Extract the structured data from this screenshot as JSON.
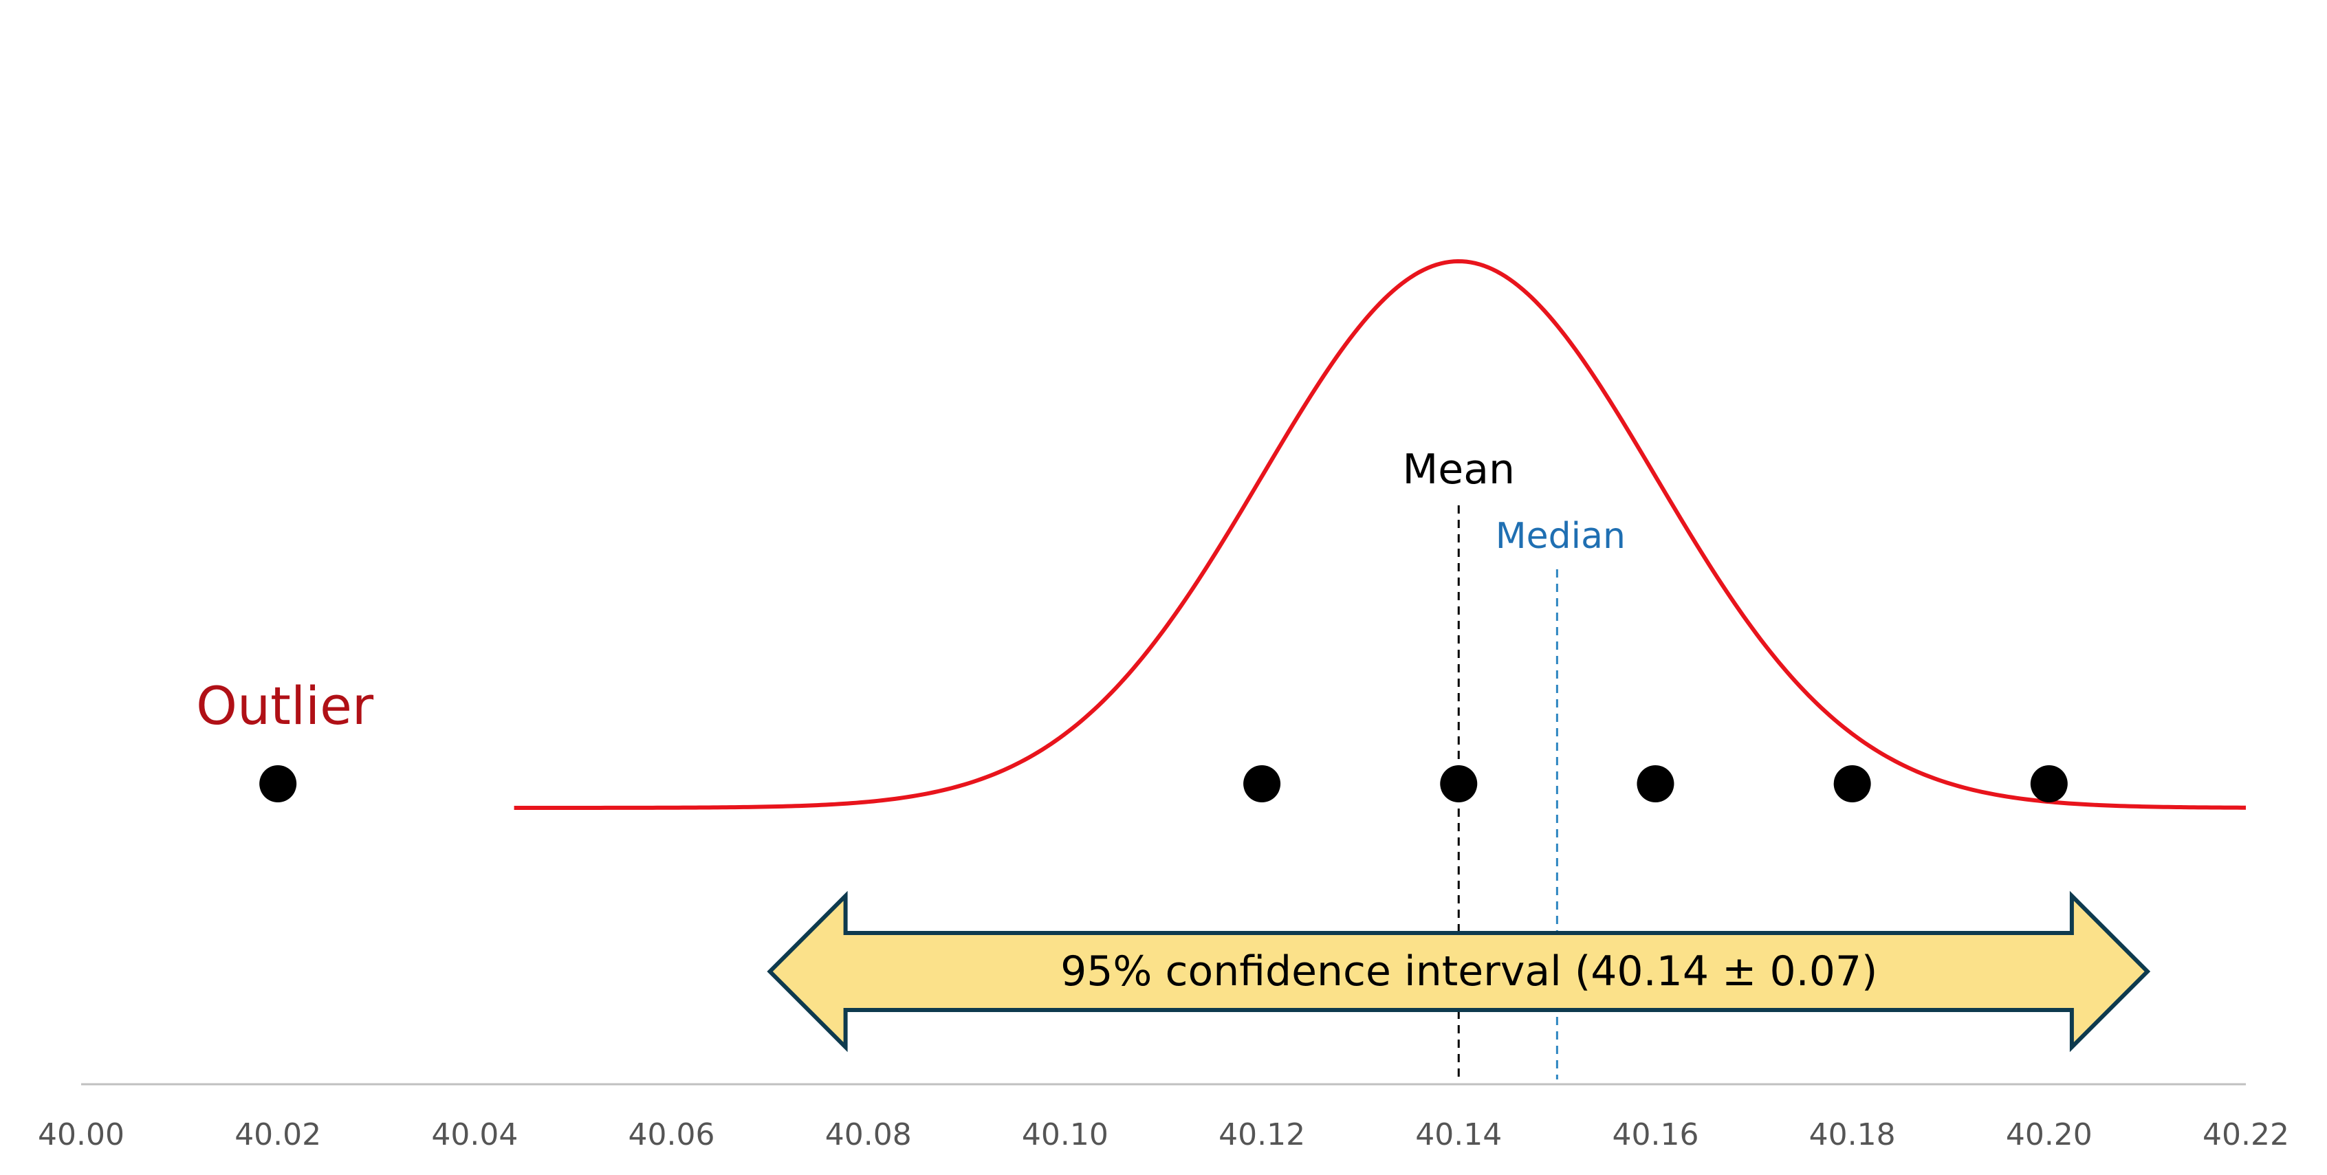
{
  "chart_data": {
    "type": "scatter",
    "title": "",
    "xlabel": "",
    "ylabel": "",
    "xlim": [
      40.0,
      40.22
    ],
    "x_ticks": [
      "40.00",
      "40.02",
      "40.04",
      "40.06",
      "40.08",
      "40.10",
      "40.12",
      "40.14",
      "40.16",
      "40.18",
      "40.20",
      "40.22"
    ],
    "x_tick_values": [
      40.0,
      40.02,
      40.04,
      40.06,
      40.08,
      40.1,
      40.12,
      40.14,
      40.16,
      40.18,
      40.2,
      40.22
    ],
    "points": [
      40.02,
      40.12,
      40.14,
      40.16,
      40.18,
      40.2
    ],
    "normal_curve": {
      "mean": 40.14,
      "sd": 0.02,
      "x_start": 40.044,
      "x_end": 40.22
    },
    "mean": {
      "label": "Mean",
      "value": 40.14
    },
    "median": {
      "label": "Median",
      "value": 40.15
    },
    "outlier": {
      "label": "Outlier",
      "value": 40.02
    },
    "confidence_interval": {
      "label": "95% confidence interval (40.14 ± 0.07)",
      "center": 40.14,
      "half_width": 0.07,
      "low": 40.07,
      "high": 40.21
    },
    "grid": false
  },
  "colors": {
    "curve": "#e8141c",
    "points": "#000000",
    "axis": "#c0c0c0",
    "tick_text": "#555555",
    "mean_line": "#000000",
    "median_line": "#2e86c1",
    "median_text": "#1f6fb2",
    "outlier_text": "#b01016",
    "arrow_fill": "#fbe18a",
    "arrow_stroke": "#0e3a4e"
  }
}
